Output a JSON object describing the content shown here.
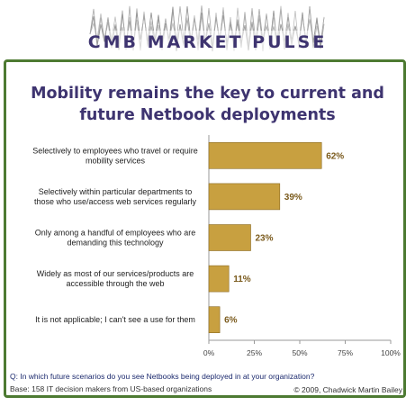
{
  "banner": {
    "title": "CMB MARKET PULSE"
  },
  "footer": {
    "question": "Q:  In which future scenarios do you see Netbooks being deployed in at your organization?",
    "base": "Base:  158 IT decision makers from US-based organizations",
    "copyright": "© 2009, Chadwick Martin Bailey"
  },
  "colors": {
    "bar": "#c8a040",
    "bar_edge": "#8a6a22",
    "frame": "#4d7a32",
    "title": "#3e3470"
  },
  "chart_data": {
    "type": "bar",
    "orientation": "horizontal",
    "title": "Mobility remains the key to current and future Netbook deployments",
    "categories": [
      [
        "Selectively to employees who travel or require",
        "mobility services"
      ],
      [
        "Selectively within particular departments to",
        "those who use/access web services regularly"
      ],
      [
        "Only among a handful of employees who are",
        "demanding this technology"
      ],
      [
        "Widely as most of our services/products are",
        "accessible through the web"
      ],
      [
        "It is not applicable; I can't see a use for them"
      ]
    ],
    "values": [
      62,
      39,
      23,
      11,
      6
    ],
    "value_labels": [
      "62%",
      "39%",
      "23%",
      "11%",
      "6%"
    ],
    "xlim": [
      0,
      100
    ],
    "xticks": [
      "0%",
      "25%",
      "50%",
      "75%",
      "100%"
    ],
    "grid": false,
    "legend": "none"
  }
}
